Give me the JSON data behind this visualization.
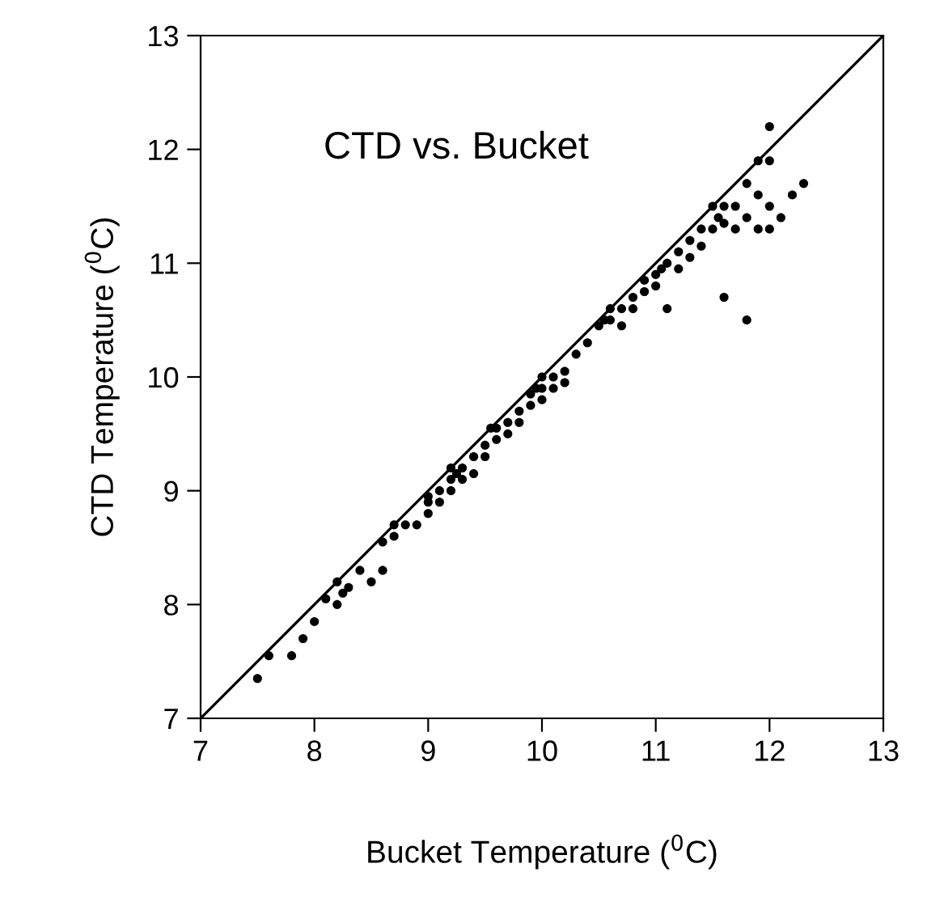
{
  "chart_data": {
    "type": "scatter",
    "title": "CTD vs. Bucket",
    "xlabel": "Bucket Temperature ($^{0}$C)",
    "ylabel": "CTD Temperature ($^{0}$C)",
    "xlim": [
      7,
      13
    ],
    "ylim": [
      7,
      13
    ],
    "xticks": [
      7,
      8,
      9,
      10,
      11,
      12,
      13
    ],
    "yticks": [
      7,
      8,
      9,
      10,
      11,
      12,
      13
    ],
    "grid": false,
    "series": [
      {
        "marker": "circle",
        "color": "#000000",
        "x": [
          7.5,
          7.6,
          7.8,
          7.9,
          8.0,
          8.1,
          8.2,
          8.2,
          8.25,
          8.3,
          8.4,
          8.5,
          8.6,
          8.6,
          8.7,
          8.7,
          8.8,
          8.9,
          9.0,
          9.0,
          9.0,
          9.1,
          9.1,
          9.2,
          9.2,
          9.2,
          9.25,
          9.3,
          9.3,
          9.4,
          9.4,
          9.5,
          9.5,
          9.55,
          9.6,
          9.6,
          9.7,
          9.7,
          9.8,
          9.8,
          9.9,
          9.9,
          9.95,
          10.0,
          10.0,
          10.0,
          10.1,
          10.1,
          10.2,
          10.2,
          10.3,
          10.4,
          10.5,
          10.55,
          10.6,
          10.6,
          10.7,
          10.7,
          10.8,
          10.8,
          10.9,
          10.9,
          11.0,
          11.0,
          11.05,
          11.1,
          11.1,
          11.2,
          11.2,
          11.3,
          11.3,
          11.4,
          11.4,
          11.5,
          11.5,
          11.55,
          11.6,
          11.6,
          11.6,
          11.7,
          11.7,
          11.8,
          11.8,
          11.8,
          11.9,
          11.9,
          11.9,
          12.0,
          12.0,
          12.0,
          12.0,
          12.1,
          12.2,
          12.3
        ],
        "values": [
          7.35,
          7.55,
          7.55,
          7.7,
          7.85,
          8.05,
          8.0,
          8.2,
          8.1,
          8.15,
          8.3,
          8.2,
          8.3,
          8.55,
          8.7,
          8.6,
          8.7,
          8.7,
          8.95,
          8.8,
          8.9,
          9.0,
          8.9,
          9.1,
          9.2,
          9.0,
          9.15,
          9.2,
          9.1,
          9.3,
          9.15,
          9.4,
          9.3,
          9.55,
          9.55,
          9.45,
          9.6,
          9.5,
          9.7,
          9.6,
          9.85,
          9.75,
          9.9,
          10.0,
          9.9,
          9.8,
          10.0,
          9.9,
          10.05,
          9.95,
          10.2,
          10.3,
          10.45,
          10.5,
          10.6,
          10.5,
          10.6,
          10.45,
          10.7,
          10.6,
          10.85,
          10.75,
          10.9,
          10.8,
          10.95,
          11.0,
          10.6,
          11.1,
          10.95,
          11.2,
          11.05,
          11.3,
          11.15,
          11.5,
          11.3,
          11.4,
          11.5,
          11.35,
          10.7,
          11.5,
          11.3,
          11.7,
          11.4,
          10.5,
          11.9,
          11.6,
          11.3,
          12.2,
          11.9,
          11.5,
          11.3,
          11.4,
          11.6,
          11.7
        ]
      },
      {
        "type": "line",
        "color": "#000000",
        "x": [
          7,
          13
        ],
        "values": [
          7,
          13
        ]
      }
    ]
  }
}
